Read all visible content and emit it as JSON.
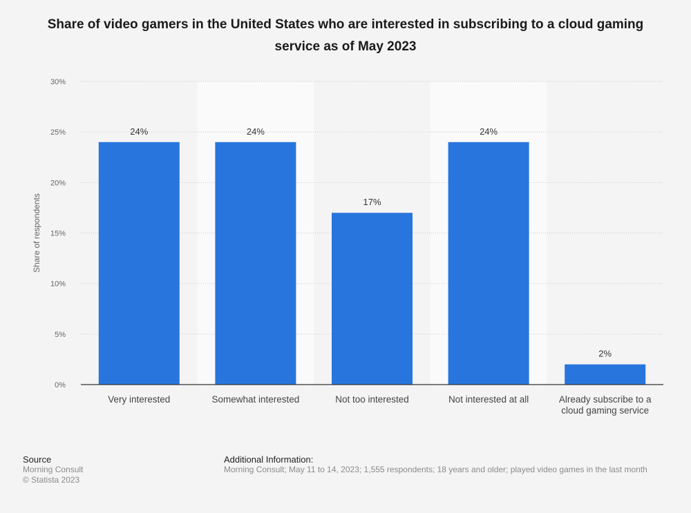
{
  "chart_data": {
    "type": "bar",
    "title": "Share of video gamers in the United States who are interested in subscribing to a cloud gaming service as of May 2023",
    "categories": [
      "Very interested",
      "Somewhat interested",
      "Not too interested",
      "Not interested at all",
      "Already subscribe to a cloud gaming service"
    ],
    "category_lines": [
      [
        "Very interested"
      ],
      [
        "Somewhat interested"
      ],
      [
        "Not too interested"
      ],
      [
        "Not interested at all"
      ],
      [
        "Already subscribe to a",
        "cloud gaming service"
      ]
    ],
    "values": [
      24,
      24,
      17,
      24,
      2
    ],
    "data_labels": [
      "24%",
      "24%",
      "17%",
      "24%",
      "2%"
    ],
    "xlabel": "",
    "ylabel": "Share of respondents",
    "ylim": [
      0,
      30
    ],
    "yticks": [
      0,
      5,
      10,
      15,
      20,
      25,
      30
    ],
    "ytick_labels": [
      "0%",
      "5%",
      "10%",
      "15%",
      "20%",
      "25%",
      "30%"
    ],
    "bar_color": "#2876dd",
    "grid": true
  },
  "footer": {
    "source_heading": "Source",
    "source_lines": [
      "Morning Consult",
      "© Statista 2023"
    ],
    "additional_heading": "Additional Information:",
    "additional_text": "Morning Consult; May 11 to 14, 2023; 1,555 respondents; 18 years and older; played video games in the last month"
  }
}
